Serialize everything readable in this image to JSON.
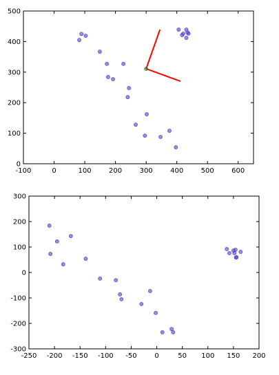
{
  "chart_data": [
    {
      "type": "scatter",
      "xlim": [
        -100,
        650
      ],
      "ylim": [
        0,
        500
      ],
      "xticks": [
        -100,
        0,
        100,
        200,
        300,
        400,
        500,
        600
      ],
      "yticks": [
        0,
        100,
        200,
        300,
        400,
        500
      ],
      "series": [
        {
          "color": "#4b3fc9",
          "x": [
            89,
            103,
            82,
            149,
            172,
            176,
            192,
            226,
            244,
            240,
            302,
            266,
            296,
            347,
            376,
            397,
            406,
            431,
            435,
            421,
            438,
            417,
            431
          ],
          "y": [
            425,
            419,
            405,
            367,
            327,
            284,
            277,
            327,
            248,
            218,
            162,
            128,
            92,
            88,
            108,
            54,
            439,
            439,
            430,
            426,
            426,
            421,
            412
          ]
        },
        {
          "color": "#2e7d2e",
          "x": [
            300
          ],
          "y": [
            311
          ]
        }
      ],
      "lines": [
        {
          "color": "#ff0000",
          "x": [
            300,
            345
          ],
          "y": [
            311,
            439
          ]
        },
        {
          "color": "#ff0000",
          "x": [
            300,
            412
          ],
          "y": [
            311,
            270
          ]
        }
      ]
    },
    {
      "type": "scatter",
      "xlim": [
        -250,
        200
      ],
      "ylim": [
        -300,
        300
      ],
      "xticks": [
        -250,
        -200,
        -150,
        -100,
        -50,
        0,
        50,
        100,
        150,
        200
      ],
      "yticks": [
        -300,
        -200,
        -100,
        0,
        100,
        200,
        300
      ],
      "series": [
        {
          "color": "#4b3fc9",
          "x": [
            -210,
            -208,
            -195,
            -183,
            -168,
            -139,
            -111,
            -80,
            -72,
            -69,
            -30,
            -13,
            -2,
            11,
            29,
            32,
            137,
            142,
            150,
            154,
            152,
            164,
            155,
            156
          ],
          "y": [
            184,
            73,
            122,
            32,
            143,
            54,
            -24,
            -30,
            -86,
            -105,
            -124,
            -73,
            -159,
            -235,
            -222,
            -235,
            92,
            76,
            86,
            89,
            76,
            81,
            59,
            60
          ]
        }
      ]
    }
  ]
}
